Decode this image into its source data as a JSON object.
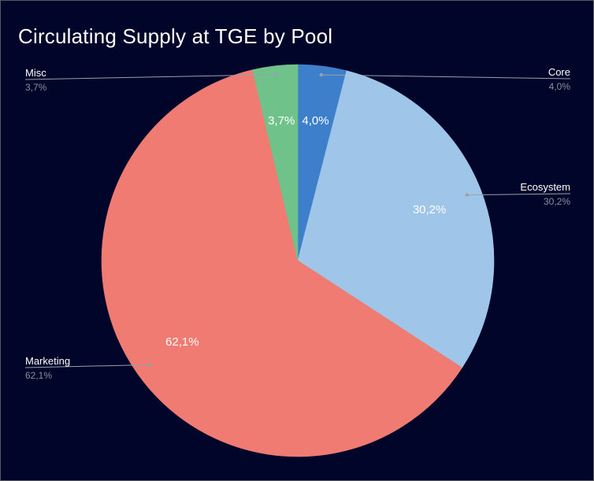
{
  "chart_data": {
    "type": "pie",
    "title": "Circulating Supply at TGE by Pool",
    "slices": [
      {
        "name": "Core",
        "value": 4.0,
        "label": "4,0%",
        "color": "#3d7fca"
      },
      {
        "name": "Ecosystem",
        "value": 30.2,
        "label": "30,2%",
        "color": "#9fc5e8"
      },
      {
        "name": "Marketing",
        "value": 62.1,
        "label": "62,1%",
        "color": "#ef7b72"
      },
      {
        "name": "Misc",
        "value": 3.7,
        "label": "3,7%",
        "color": "#6fc38a"
      }
    ],
    "start": "12 o'clock",
    "direction": "clockwise",
    "legend": "callouts beside slices"
  }
}
